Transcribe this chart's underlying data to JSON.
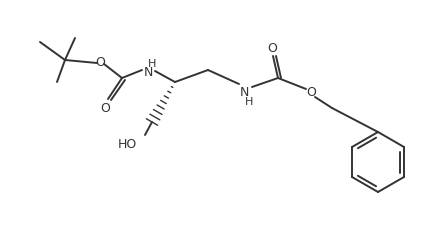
{
  "background_color": "#ffffff",
  "line_color": "#333333",
  "line_width": 1.4,
  "figsize": [
    4.38,
    2.27
  ],
  "dpi": 100,
  "atoms": {
    "O1_label": "O",
    "O2_label": "O",
    "O3_label": "O",
    "O4_label": "O",
    "NH1_label": "H\nN",
    "NH2_label": "N\nH",
    "HO_label": "HO"
  },
  "font_size_atom": 9
}
